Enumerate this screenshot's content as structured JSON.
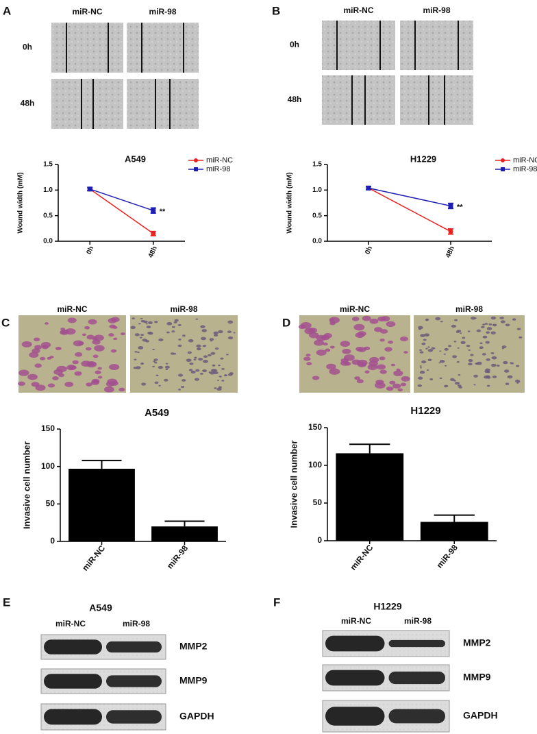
{
  "panels": {
    "letters": [
      "A",
      "B",
      "C",
      "D",
      "E",
      "F"
    ]
  },
  "wound": [
    {
      "groups": [
        "miR-NC",
        "miR-98"
      ],
      "rows": [
        "0h",
        "48h"
      ]
    },
    {
      "groups": [
        "miR-NC",
        "miR-98"
      ],
      "rows": [
        "0h",
        "48h"
      ]
    }
  ],
  "invasion_images": [
    {
      "groups": [
        "miR-NC",
        "miR-98"
      ]
    },
    {
      "groups": [
        "miR-NC",
        "miR-98"
      ]
    }
  ],
  "western": [
    {
      "title": "A549",
      "groups": [
        "miR-NC",
        "miR-98"
      ],
      "proteins": [
        "MMP2",
        "MMP9",
        "GAPDH"
      ]
    },
    {
      "title": "H1229",
      "groups": [
        "miR-NC",
        "miR-98"
      ],
      "proteins": [
        "MMP2",
        "MMP9",
        "GAPDH"
      ]
    }
  ],
  "chart_data": [
    {
      "type": "line",
      "title": "A549",
      "y_label": "Wound width (mM)",
      "categories": [
        "0h",
        "48h"
      ],
      "series": [
        {
          "name": "miR-NC",
          "color": "#e8231f",
          "values": [
            1.02,
            0.15
          ],
          "errors": [
            0.03,
            0.04
          ]
        },
        {
          "name": "miR-98",
          "color": "#1f1fb4",
          "values": [
            1.02,
            0.6
          ],
          "errors": [
            0.03,
            0.05
          ]
        }
      ],
      "ylim": [
        0,
        1.5
      ],
      "yticks": [
        {
          "value": 0,
          "label": "0.0"
        },
        {
          "value": 0.5,
          "label": "0.5"
        },
        {
          "value": 1,
          "label": "1.0"
        },
        {
          "value": 1.5,
          "label": "1.5"
        }
      ],
      "annotations": [
        "**"
      ],
      "legend": "upper right"
    },
    {
      "type": "line",
      "title": "H1229",
      "y_label": "Wound width (mM)",
      "categories": [
        "0h",
        "48h"
      ],
      "series": [
        {
          "name": "miR-NC",
          "color": "#e8231f",
          "values": [
            1.04,
            0.19
          ],
          "errors": [
            0.03,
            0.05
          ]
        },
        {
          "name": "miR-98",
          "color": "#1f1fb4",
          "values": [
            1.04,
            0.69
          ],
          "errors": [
            0.03,
            0.05
          ]
        }
      ],
      "ylim": [
        0,
        1.5
      ],
      "yticks": [
        {
          "value": 0,
          "label": "0.0"
        },
        {
          "value": 0.5,
          "label": "0.5"
        },
        {
          "value": 1,
          "label": "1.0"
        },
        {
          "value": 1.5,
          "label": "1.5"
        }
      ],
      "annotations": [
        "**"
      ],
      "legend": "upper right"
    },
    {
      "type": "bar",
      "title": "A549",
      "y_label": "Invasive cell number",
      "categories": [
        "miR-NC",
        "miR-98"
      ],
      "values": [
        97,
        20
      ],
      "errors": [
        11,
        7
      ],
      "color": "#000000",
      "ylim": [
        0,
        150
      ],
      "yticks": [
        0,
        50,
        100,
        150
      ]
    },
    {
      "type": "bar",
      "title": "H1229",
      "y_label": "Invasive cell number",
      "categories": [
        "miR-NC",
        "miR-98"
      ],
      "values": [
        116,
        25
      ],
      "errors": [
        12,
        9
      ],
      "color": "#000000",
      "ylim": [
        0,
        150
      ],
      "yticks": [
        0,
        50,
        100,
        150
      ]
    }
  ]
}
